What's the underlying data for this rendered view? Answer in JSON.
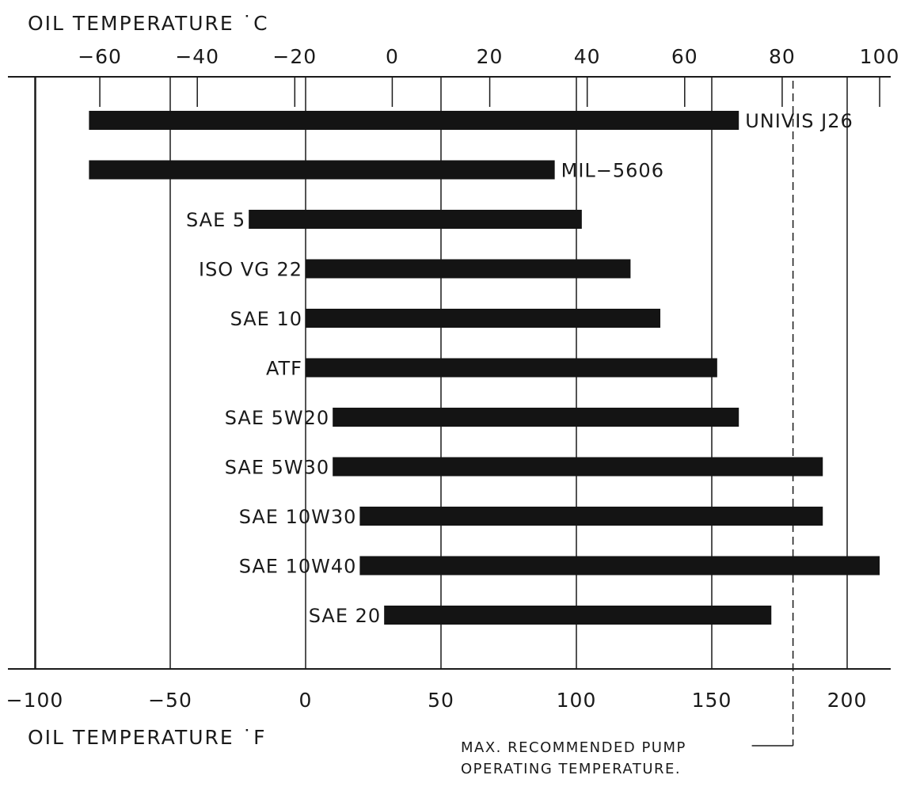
{
  "chart_data": {
    "type": "bar",
    "orientation": "horizontal-range",
    "top_axis": {
      "title": "OIL TEMPERATURE ˙C",
      "unit": "C",
      "ticks": [
        -60,
        -40,
        -20,
        0,
        20,
        40,
        60,
        80,
        100
      ],
      "tick_labels": [
        "−60",
        "−40",
        "−20",
        "0",
        "20",
        "40",
        "60",
        "80",
        "100"
      ]
    },
    "bottom_axis": {
      "title": "OIL TEMPERATURE ˙F",
      "unit": "F",
      "ticks": [
        -100,
        -50,
        0,
        50,
        100,
        150,
        200
      ],
      "tick_labels": [
        "−100",
        "−50",
        "0",
        "50",
        "100",
        "150",
        "200"
      ]
    },
    "xlim_f": [
      -100,
      210
    ],
    "grid": true,
    "series": [
      {
        "name": "UNIVIS J26",
        "min_f": -80,
        "max_f": 160
      },
      {
        "name": "MIL−5606",
        "min_f": -80,
        "max_f": 92
      },
      {
        "name": "SAE  5",
        "min_f": -21,
        "max_f": 102
      },
      {
        "name": "ISO  VG  22",
        "min_f": 0,
        "max_f": 120
      },
      {
        "name": "SAE  10",
        "min_f": 0,
        "max_f": 131
      },
      {
        "name": "ATF",
        "min_f": 0,
        "max_f": 152
      },
      {
        "name": "SAE  5W20",
        "min_f": 10,
        "max_f": 160
      },
      {
        "name": "SAE  5W30",
        "min_f": 10,
        "max_f": 191
      },
      {
        "name": "SAE  10W30",
        "min_f": 20,
        "max_f": 191
      },
      {
        "name": "SAE  10W40",
        "min_f": 20,
        "max_f": 212
      },
      {
        "name": "SAE  20",
        "min_f": 29,
        "max_f": 172
      }
    ],
    "max_recommended_pump_temp_f": 180,
    "annotation": [
      "MAX. RECOMMENDED PUMP",
      "OPERATING TEMPERATURE."
    ]
  }
}
